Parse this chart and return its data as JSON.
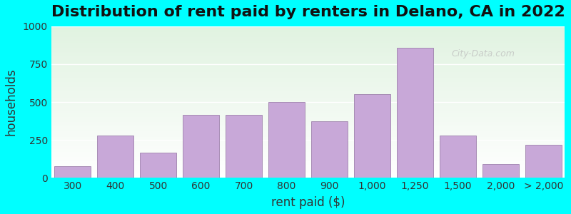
{
  "title": "Distribution of rent paid by renters in Delano, CA in 2022",
  "xlabel": "rent paid ($)",
  "ylabel": "households",
  "background_outer": "#00FFFF",
  "background_inner_colors": [
    "#e8f5e0",
    "#f5f5f5"
  ],
  "bar_color": "#c8a8d8",
  "bar_edge_color": "#9070a0",
  "categories": [
    "300",
    "400",
    "500",
    "600",
    "700",
    "800",
    "900",
    "1,000",
    "1,250",
    "1,500",
    "2,000",
    "> 2,000"
  ],
  "values": [
    75,
    280,
    165,
    415,
    415,
    500,
    375,
    550,
    860,
    280,
    90,
    220
  ],
  "ylim": [
    0,
    1000
  ],
  "yticks": [
    0,
    250,
    500,
    750,
    1000
  ],
  "title_fontsize": 16,
  "axis_label_fontsize": 12,
  "tick_fontsize": 10
}
